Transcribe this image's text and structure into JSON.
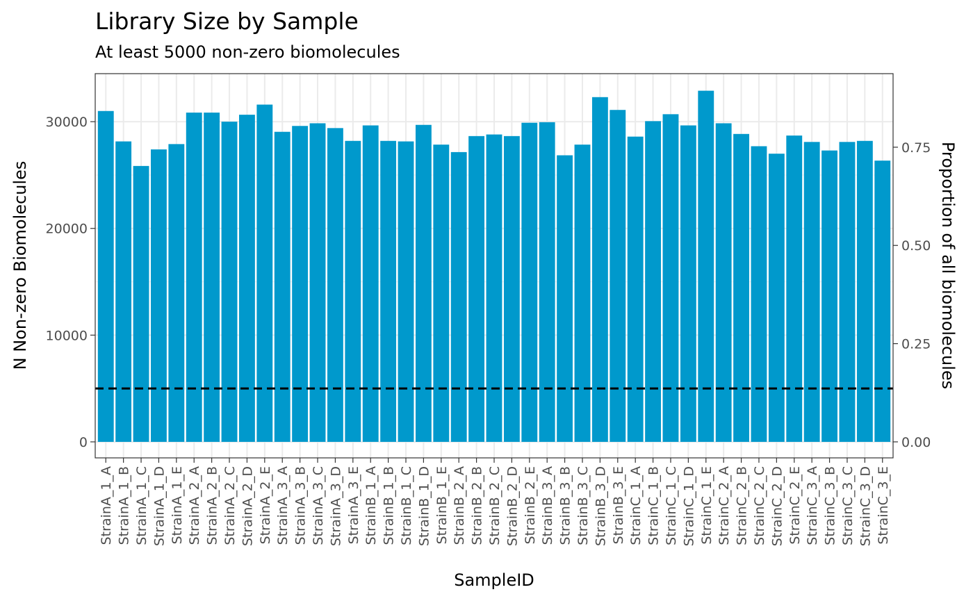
{
  "chart_data": {
    "type": "bar",
    "title": "Library Size by Sample",
    "subtitle": "At least 5000 non-zero biomolecules",
    "xlabel": "SampleID",
    "ylabel": "N Non-zero Biomolecules",
    "y2label": "Proportion of all biomolecules",
    "ylim": [
      -1500,
      34500
    ],
    "yticks": [
      0,
      10000,
      20000,
      30000
    ],
    "ytick_labels": [
      "0",
      "10000",
      "20000",
      "30000"
    ],
    "y2_scale_total": 36810,
    "y2ticks": [
      0,
      0.25,
      0.5,
      0.75
    ],
    "y2tick_labels": [
      "0.00",
      "0.25",
      "0.50",
      "0.75"
    ],
    "threshold": 5000,
    "threshold_style": "dashed",
    "grid": true,
    "bar_color": "#0099CC",
    "categories": [
      "StrainA_1_A",
      "StrainA_1_B",
      "StrainA_1_C",
      "StrainA_1_D",
      "StrainA_1_E",
      "StrainA_2_A",
      "StrainA_2_B",
      "StrainA_2_C",
      "StrainA_2_D",
      "StrainA_2_E",
      "StrainA_3_A",
      "StrainA_3_B",
      "StrainA_3_C",
      "StrainA_3_D",
      "StrainA_3_E",
      "StrainB_1_A",
      "StrainB_1_B",
      "StrainB_1_C",
      "StrainB_1_D",
      "StrainB_1_E",
      "StrainB_2_A",
      "StrainB_2_B",
      "StrainB_2_C",
      "StrainB_2_D",
      "StrainB_2_E",
      "StrainB_3_A",
      "StrainB_3_B",
      "StrainB_3_C",
      "StrainB_3_D",
      "StrainB_3_E",
      "StrainC_1_A",
      "StrainC_1_B",
      "StrainC_1_C",
      "StrainC_1_D",
      "StrainC_1_E",
      "StrainC_2_A",
      "StrainC_2_B",
      "StrainC_2_C",
      "StrainC_2_D",
      "StrainC_2_E",
      "StrainC_3_A",
      "StrainC_3_B",
      "StrainC_3_C",
      "StrainC_3_D",
      "StrainC_3_E"
    ],
    "values": [
      31000,
      28150,
      25850,
      27400,
      27900,
      30850,
      30850,
      30000,
      30650,
      31600,
      29050,
      29600,
      29850,
      29400,
      28200,
      29650,
      28200,
      28150,
      29700,
      27850,
      27150,
      28650,
      28800,
      28650,
      29900,
      29950,
      26850,
      27850,
      32300,
      31100,
      28600,
      30050,
      30700,
      29650,
      32900,
      29850,
      28850,
      27700,
      27000,
      28700,
      28100,
      27300,
      28100,
      28200,
      26350
    ]
  }
}
